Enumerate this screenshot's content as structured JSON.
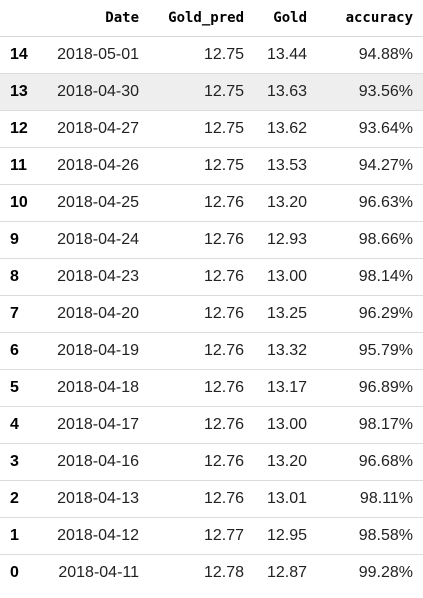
{
  "table": {
    "columns": {
      "index": "",
      "date": "Date",
      "gold_pred": "Gold_pred",
      "gold": "Gold",
      "accuracy": "accuracy"
    },
    "rows": [
      {
        "index": "14",
        "date": "2018-05-01",
        "gold_pred": "12.75",
        "gold": "13.44",
        "accuracy": "94.88%"
      },
      {
        "index": "13",
        "date": "2018-04-30",
        "gold_pred": "12.75",
        "gold": "13.63",
        "accuracy": "93.56%"
      },
      {
        "index": "12",
        "date": "2018-04-27",
        "gold_pred": "12.75",
        "gold": "13.62",
        "accuracy": "93.64%"
      },
      {
        "index": "11",
        "date": "2018-04-26",
        "gold_pred": "12.75",
        "gold": "13.53",
        "accuracy": "94.27%"
      },
      {
        "index": "10",
        "date": "2018-04-25",
        "gold_pred": "12.76",
        "gold": "13.20",
        "accuracy": "96.63%"
      },
      {
        "index": "9",
        "date": "2018-04-24",
        "gold_pred": "12.76",
        "gold": "12.93",
        "accuracy": "98.66%"
      },
      {
        "index": "8",
        "date": "2018-04-23",
        "gold_pred": "12.76",
        "gold": "13.00",
        "accuracy": "98.14%"
      },
      {
        "index": "7",
        "date": "2018-04-20",
        "gold_pred": "12.76",
        "gold": "13.25",
        "accuracy": "96.29%"
      },
      {
        "index": "6",
        "date": "2018-04-19",
        "gold_pred": "12.76",
        "gold": "13.32",
        "accuracy": "95.79%"
      },
      {
        "index": "5",
        "date": "2018-04-18",
        "gold_pred": "12.76",
        "gold": "13.17",
        "accuracy": "96.89%"
      },
      {
        "index": "4",
        "date": "2018-04-17",
        "gold_pred": "12.76",
        "gold": "13.00",
        "accuracy": "98.17%"
      },
      {
        "index": "3",
        "date": "2018-04-16",
        "gold_pred": "12.76",
        "gold": "13.20",
        "accuracy": "96.68%"
      },
      {
        "index": "2",
        "date": "2018-04-13",
        "gold_pred": "12.76",
        "gold": "13.01",
        "accuracy": "98.11%"
      },
      {
        "index": "1",
        "date": "2018-04-12",
        "gold_pred": "12.77",
        "gold": "12.95",
        "accuracy": "98.58%"
      },
      {
        "index": "0",
        "date": "2018-04-11",
        "gold_pred": "12.78",
        "gold": "12.87",
        "accuracy": "99.28%"
      }
    ],
    "colors": {
      "hover_row_background": "#eeeeee",
      "row_separator": "#dcdcdc"
    }
  }
}
